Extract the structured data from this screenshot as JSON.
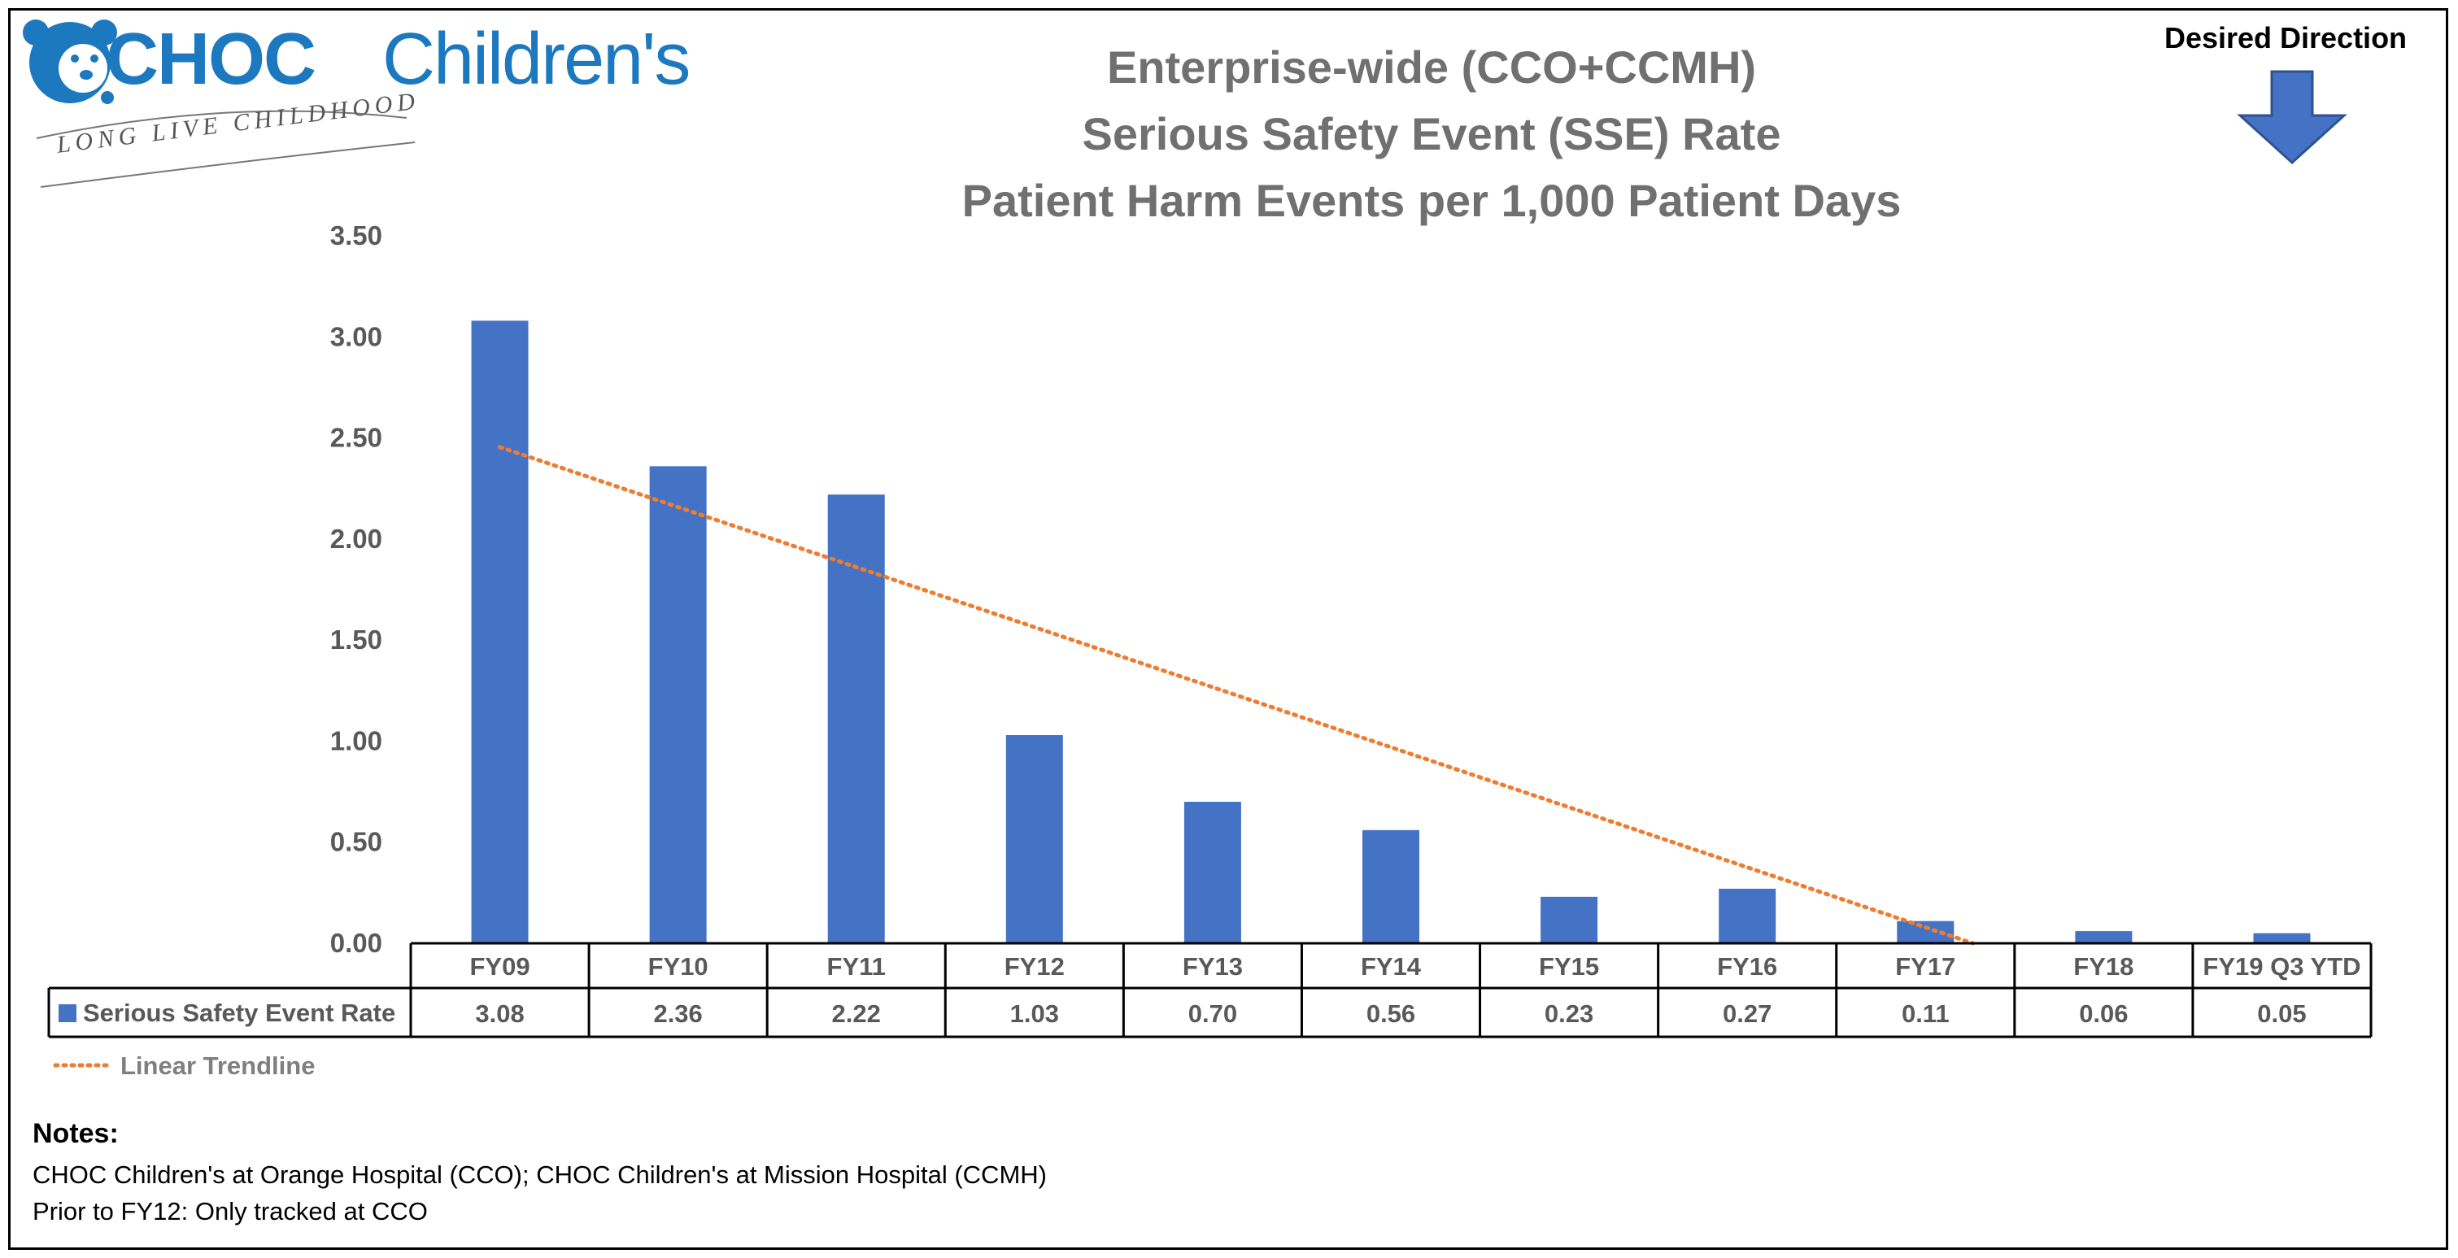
{
  "logo": {
    "brand": "CHOC",
    "brand_suffix": "Children's",
    "tagline": "LONG LIVE CHILDHOOD"
  },
  "title_lines": [
    "Enterprise-wide (CCO+CCMH)",
    "Serious Safety Event (SSE) Rate",
    "Patient Harm Events per 1,000 Patient Days"
  ],
  "desired_direction": {
    "label": "Desired Direction",
    "icon": "down-arrow-icon"
  },
  "notes": {
    "title": "Notes:",
    "lines": [
      "CHOC Children's at Orange Hospital (CCO); CHOC Children's at Mission Hospital (CCMH)",
      "Prior to FY12: Only tracked at CCO"
    ]
  },
  "colors": {
    "bar": "#4472c4",
    "trendline": "#ed7d31",
    "logo": "#1c78bf",
    "title": "#707070",
    "axis_text": "#595959"
  },
  "chart_data": {
    "type": "bar",
    "title": "Enterprise-wide (CCO+CCMH) Serious Safety Event (SSE) Rate Patient Harm Events per 1,000 Patient Days",
    "categories": [
      "FY09",
      "FY10",
      "FY11",
      "FY12",
      "FY13",
      "FY14",
      "FY15",
      "FY16",
      "FY17",
      "FY18",
      "FY19 Q3 YTD"
    ],
    "series": [
      {
        "name": "Serious Safety Event Rate",
        "values": [
          3.08,
          2.36,
          2.22,
          1.03,
          0.7,
          0.56,
          0.23,
          0.27,
          0.11,
          0.06,
          0.05
        ],
        "value_labels": [
          "3.08",
          "2.36",
          "2.22",
          "1.03",
          "0.70",
          "0.56",
          "0.23",
          "0.27",
          "0.11",
          "0.06",
          "0.05"
        ]
      }
    ],
    "trendline": {
      "name": "Linear Trendline",
      "type": "linear",
      "style": "dotted"
    },
    "ylim": [
      0,
      3.5
    ],
    "yticks": [
      "0.00",
      "0.50",
      "1.00",
      "1.50",
      "2.00",
      "2.50",
      "3.00",
      "3.50"
    ],
    "grid": false,
    "data_table": true,
    "legend": "in data table (bottom-left)"
  }
}
